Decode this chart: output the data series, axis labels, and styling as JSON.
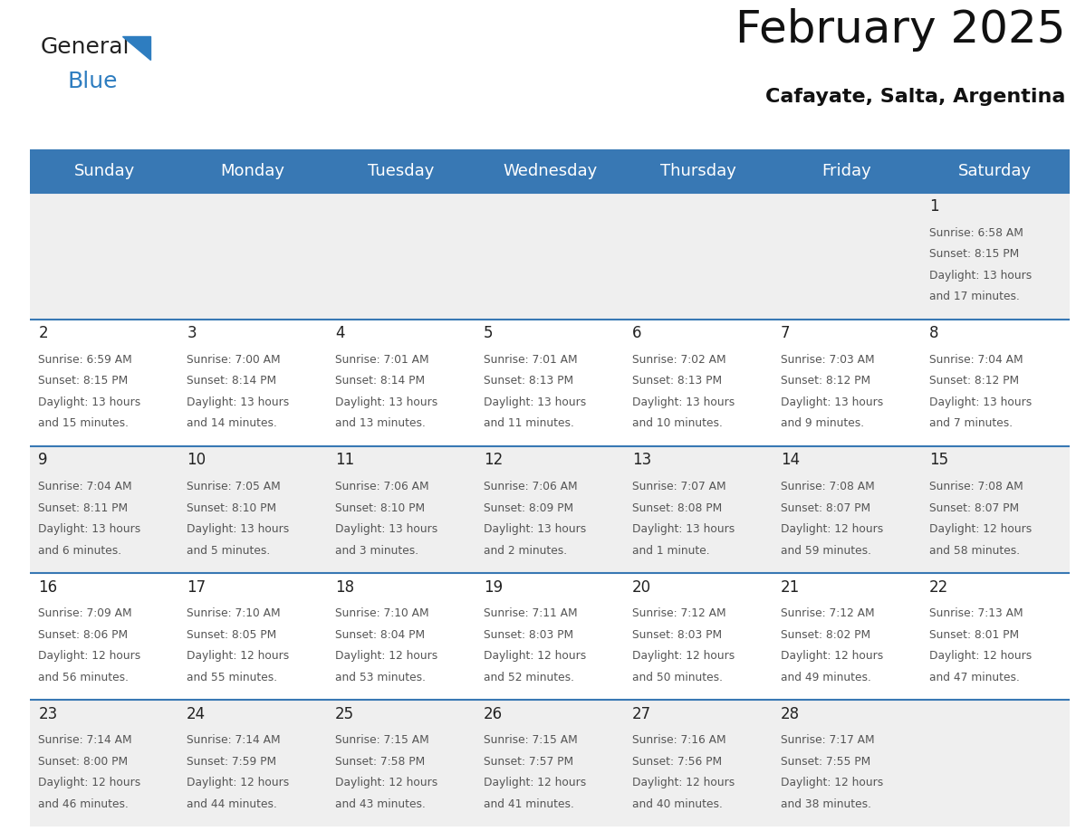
{
  "title": "February 2025",
  "subtitle": "Cafayate, Salta, Argentina",
  "header_color": "#3878b4",
  "header_text_color": "#ffffff",
  "cell_bg_gray": "#efefef",
  "cell_bg_white": "#ffffff",
  "border_color": "#3878b4",
  "title_color": "#111111",
  "subtitle_color": "#111111",
  "text_color": "#555555",
  "day_num_color": "#222222",
  "day_names": [
    "Sunday",
    "Monday",
    "Tuesday",
    "Wednesday",
    "Thursday",
    "Friday",
    "Saturday"
  ],
  "title_fontsize": 36,
  "subtitle_fontsize": 16,
  "day_header_fontsize": 13,
  "day_num_fontsize": 12,
  "cell_text_fontsize": 8.8,
  "logo_general_color": "#222222",
  "logo_blue_color": "#2e7dc0",
  "logo_triangle_color": "#2e7dc0",
  "calendar": [
    [
      null,
      null,
      null,
      null,
      null,
      null,
      {
        "day": 1,
        "sunrise": "6:58 AM",
        "sunset": "8:15 PM",
        "daylight": "13 hours\nand 17 minutes."
      }
    ],
    [
      {
        "day": 2,
        "sunrise": "6:59 AM",
        "sunset": "8:15 PM",
        "daylight": "13 hours\nand 15 minutes."
      },
      {
        "day": 3,
        "sunrise": "7:00 AM",
        "sunset": "8:14 PM",
        "daylight": "13 hours\nand 14 minutes."
      },
      {
        "day": 4,
        "sunrise": "7:01 AM",
        "sunset": "8:14 PM",
        "daylight": "13 hours\nand 13 minutes."
      },
      {
        "day": 5,
        "sunrise": "7:01 AM",
        "sunset": "8:13 PM",
        "daylight": "13 hours\nand 11 minutes."
      },
      {
        "day": 6,
        "sunrise": "7:02 AM",
        "sunset": "8:13 PM",
        "daylight": "13 hours\nand 10 minutes."
      },
      {
        "day": 7,
        "sunrise": "7:03 AM",
        "sunset": "8:12 PM",
        "daylight": "13 hours\nand 9 minutes."
      },
      {
        "day": 8,
        "sunrise": "7:04 AM",
        "sunset": "8:12 PM",
        "daylight": "13 hours\nand 7 minutes."
      }
    ],
    [
      {
        "day": 9,
        "sunrise": "7:04 AM",
        "sunset": "8:11 PM",
        "daylight": "13 hours\nand 6 minutes."
      },
      {
        "day": 10,
        "sunrise": "7:05 AM",
        "sunset": "8:10 PM",
        "daylight": "13 hours\nand 5 minutes."
      },
      {
        "day": 11,
        "sunrise": "7:06 AM",
        "sunset": "8:10 PM",
        "daylight": "13 hours\nand 3 minutes."
      },
      {
        "day": 12,
        "sunrise": "7:06 AM",
        "sunset": "8:09 PM",
        "daylight": "13 hours\nand 2 minutes."
      },
      {
        "day": 13,
        "sunrise": "7:07 AM",
        "sunset": "8:08 PM",
        "daylight": "13 hours\nand 1 minute."
      },
      {
        "day": 14,
        "sunrise": "7:08 AM",
        "sunset": "8:07 PM",
        "daylight": "12 hours\nand 59 minutes."
      },
      {
        "day": 15,
        "sunrise": "7:08 AM",
        "sunset": "8:07 PM",
        "daylight": "12 hours\nand 58 minutes."
      }
    ],
    [
      {
        "day": 16,
        "sunrise": "7:09 AM",
        "sunset": "8:06 PM",
        "daylight": "12 hours\nand 56 minutes."
      },
      {
        "day": 17,
        "sunrise": "7:10 AM",
        "sunset": "8:05 PM",
        "daylight": "12 hours\nand 55 minutes."
      },
      {
        "day": 18,
        "sunrise": "7:10 AM",
        "sunset": "8:04 PM",
        "daylight": "12 hours\nand 53 minutes."
      },
      {
        "day": 19,
        "sunrise": "7:11 AM",
        "sunset": "8:03 PM",
        "daylight": "12 hours\nand 52 minutes."
      },
      {
        "day": 20,
        "sunrise": "7:12 AM",
        "sunset": "8:03 PM",
        "daylight": "12 hours\nand 50 minutes."
      },
      {
        "day": 21,
        "sunrise": "7:12 AM",
        "sunset": "8:02 PM",
        "daylight": "12 hours\nand 49 minutes."
      },
      {
        "day": 22,
        "sunrise": "7:13 AM",
        "sunset": "8:01 PM",
        "daylight": "12 hours\nand 47 minutes."
      }
    ],
    [
      {
        "day": 23,
        "sunrise": "7:14 AM",
        "sunset": "8:00 PM",
        "daylight": "12 hours\nand 46 minutes."
      },
      {
        "day": 24,
        "sunrise": "7:14 AM",
        "sunset": "7:59 PM",
        "daylight": "12 hours\nand 44 minutes."
      },
      {
        "day": 25,
        "sunrise": "7:15 AM",
        "sunset": "7:58 PM",
        "daylight": "12 hours\nand 43 minutes."
      },
      {
        "day": 26,
        "sunrise": "7:15 AM",
        "sunset": "7:57 PM",
        "daylight": "12 hours\nand 41 minutes."
      },
      {
        "day": 27,
        "sunrise": "7:16 AM",
        "sunset": "7:56 PM",
        "daylight": "12 hours\nand 40 minutes."
      },
      {
        "day": 28,
        "sunrise": "7:17 AM",
        "sunset": "7:55 PM",
        "daylight": "12 hours\nand 38 minutes."
      },
      null
    ]
  ]
}
